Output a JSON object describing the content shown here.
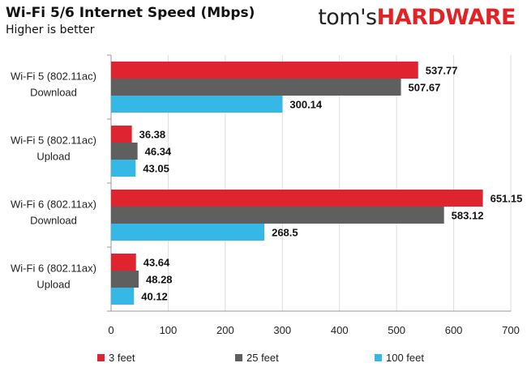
{
  "header": {
    "title": "Wi-Fi 5/6 Internet Speed (Mbps)",
    "subtitle": "Higher is better",
    "logo_part1": "tom's",
    "logo_part2": "HARDWARE"
  },
  "colors": {
    "series_3ft": "#e0242f",
    "series_25ft": "#5f5f5f",
    "series_100ft": "#35b8e6",
    "axis": "#999999",
    "grid": "#dddddd"
  },
  "chart_data": {
    "type": "bar",
    "orientation": "horizontal",
    "categories": [
      [
        "Wi-Fi 5 (802.11ac)",
        "Download"
      ],
      [
        "Wi-Fi 5 (802.11ac)",
        "Upload"
      ],
      [
        "Wi-Fi 6 (802.11ax)",
        "Download"
      ],
      [
        "Wi-Fi 6 (802.11ax)",
        "Upload"
      ]
    ],
    "series": [
      {
        "name": "3 feet",
        "values": [
          537.77,
          36.38,
          651.15,
          43.64
        ],
        "labels": [
          "537.77",
          "36.38",
          "651.15",
          "43.64"
        ],
        "color": "#e0242f"
      },
      {
        "name": "25 feet",
        "values": [
          507.67,
          46.34,
          583.12,
          48.28
        ],
        "labels": [
          "507.67",
          "46.34",
          "583.12",
          "48.28"
        ],
        "color": "#5f5f5f"
      },
      {
        "name": "100 feet",
        "values": [
          300.14,
          43.05,
          268.5,
          40.12
        ],
        "labels": [
          "300.14",
          "43.05",
          "268.5",
          "40.12"
        ],
        "color": "#35b8e6"
      }
    ],
    "xlim": [
      0,
      700
    ],
    "xticks": [
      0,
      100,
      200,
      300,
      400,
      500,
      600,
      700
    ],
    "title": "Wi-Fi 5/6 Internet Speed (Mbps)",
    "subtitle": "Higher is better",
    "xlabel": "",
    "ylabel": "",
    "grid": true,
    "legend_position": "bottom"
  }
}
